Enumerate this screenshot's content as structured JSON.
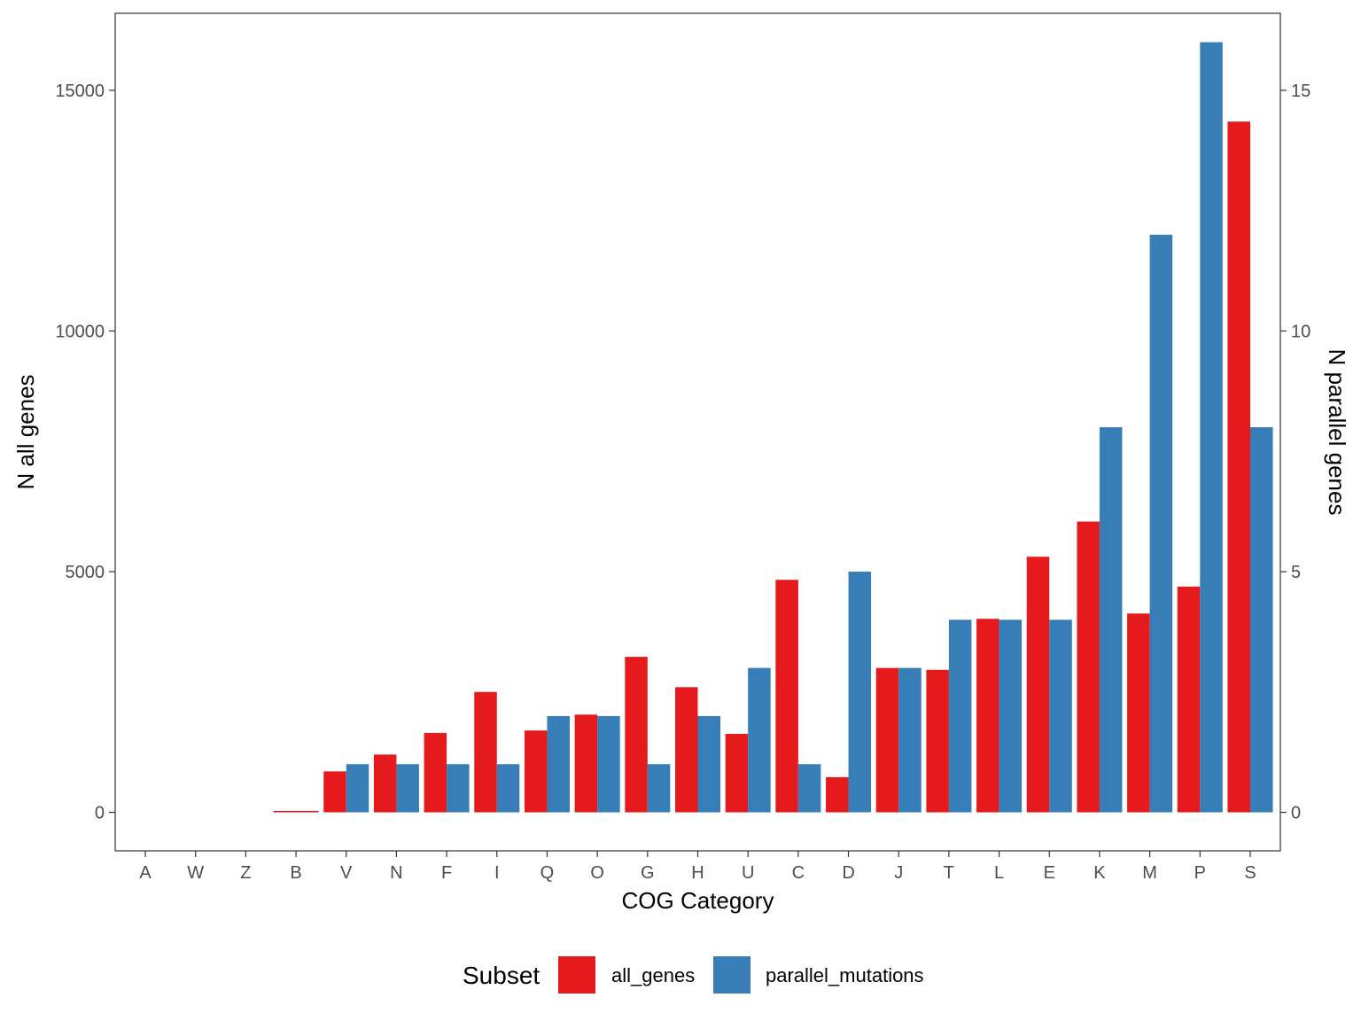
{
  "chart_data": {
    "type": "bar",
    "categories": [
      "A",
      "W",
      "Z",
      "B",
      "V",
      "N",
      "F",
      "I",
      "Q",
      "O",
      "G",
      "H",
      "U",
      "C",
      "D",
      "J",
      "T",
      "L",
      "E",
      "K",
      "M",
      "P",
      "S"
    ],
    "series": [
      {
        "name": "all_genes",
        "axis": "left",
        "color": "#e41a1c",
        "values": [
          0,
          0,
          0,
          30,
          850,
          1200,
          1650,
          2500,
          1700,
          2030,
          3230,
          2600,
          1630,
          4830,
          730,
          3000,
          2960,
          4020,
          5310,
          6040,
          4130,
          4690,
          14350
        ]
      },
      {
        "name": "parallel_mutations",
        "axis": "right",
        "color": "#377eb8",
        "values": [
          0,
          0,
          0,
          0,
          1,
          1,
          1,
          1,
          2,
          2,
          1,
          2,
          3,
          1,
          5,
          3,
          4,
          4,
          4,
          8,
          12,
          16,
          8
        ]
      }
    ],
    "xlabel": "COG Category",
    "ylabel_left": "N all genes",
    "ylabel_right": "N parallel genes",
    "ylim_left": [
      -800,
      16600
    ],
    "ylim_right": [
      -0.8,
      16.6
    ],
    "yticks_left": [
      0,
      5000,
      10000,
      15000
    ],
    "yticks_right": [
      0,
      5,
      10,
      15
    ],
    "legend": {
      "title": "Subset",
      "position": "bottom",
      "entries": [
        {
          "label": "all_genes",
          "color": "#e41a1c"
        },
        {
          "label": "parallel_mutations",
          "color": "#377eb8"
        }
      ]
    },
    "grid": false
  }
}
